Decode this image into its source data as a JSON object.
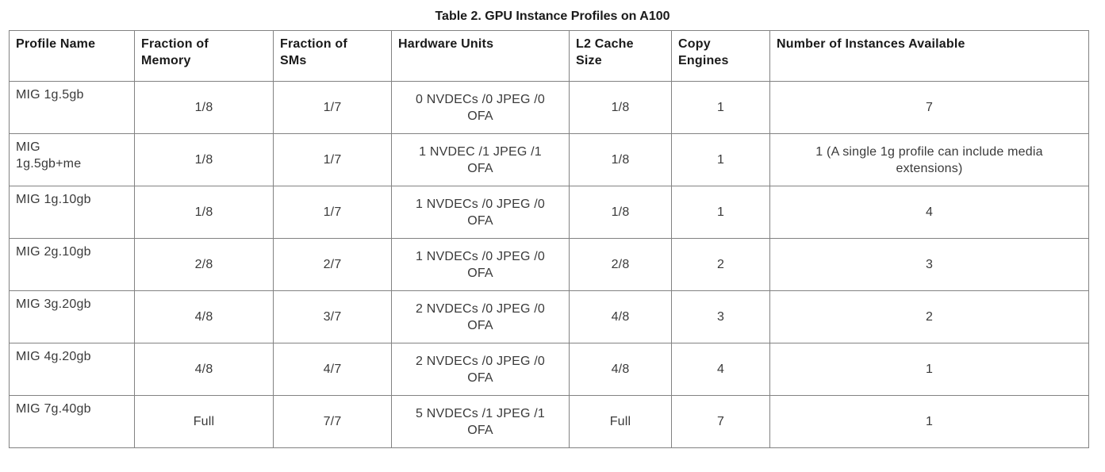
{
  "title": "Table 2. GPU Instance Profiles on A100",
  "table": {
    "headers": [
      "Profile Name",
      "Fraction of\nMemory",
      "Fraction of\nSMs",
      "Hardware Units",
      "L2 Cache\nSize",
      "Copy\nEngines",
      "Number of Instances Available"
    ],
    "rows": [
      [
        "MIG 1g.5gb",
        "1/8",
        "1/7",
        "0 NVDECs /0 JPEG /0\nOFA",
        "1/8",
        "1",
        "7"
      ],
      [
        "MIG\n1g.5gb+me",
        "1/8",
        "1/7",
        "1 NVDEC /1 JPEG /1\nOFA",
        "1/8",
        "1",
        "1 (A single 1g profile can include media\nextensions)"
      ],
      [
        "MIG 1g.10gb",
        "1/8",
        "1/7",
        "1 NVDECs /0 JPEG /0\nOFA",
        "1/8",
        "1",
        "4"
      ],
      [
        "MIG 2g.10gb",
        "2/8",
        "2/7",
        "1 NVDECs /0 JPEG /0\nOFA",
        "2/8",
        "2",
        "3"
      ],
      [
        "MIG 3g.20gb",
        "4/8",
        "3/7",
        "2 NVDECs /0 JPEG /0\nOFA",
        "4/8",
        "3",
        "2"
      ],
      [
        "MIG 4g.20gb",
        "4/8",
        "4/7",
        "2 NVDECs /0 JPEG /0\nOFA",
        "4/8",
        "4",
        "1"
      ],
      [
        "MIG 7g.40gb",
        "Full",
        "7/7",
        "5 NVDECs /1 JPEG /1\nOFA",
        "Full",
        "7",
        "1"
      ]
    ]
  },
  "colors": {
    "border": "#828282",
    "header_text": "#1a1a1a",
    "body_text": "#3a3a3a"
  }
}
